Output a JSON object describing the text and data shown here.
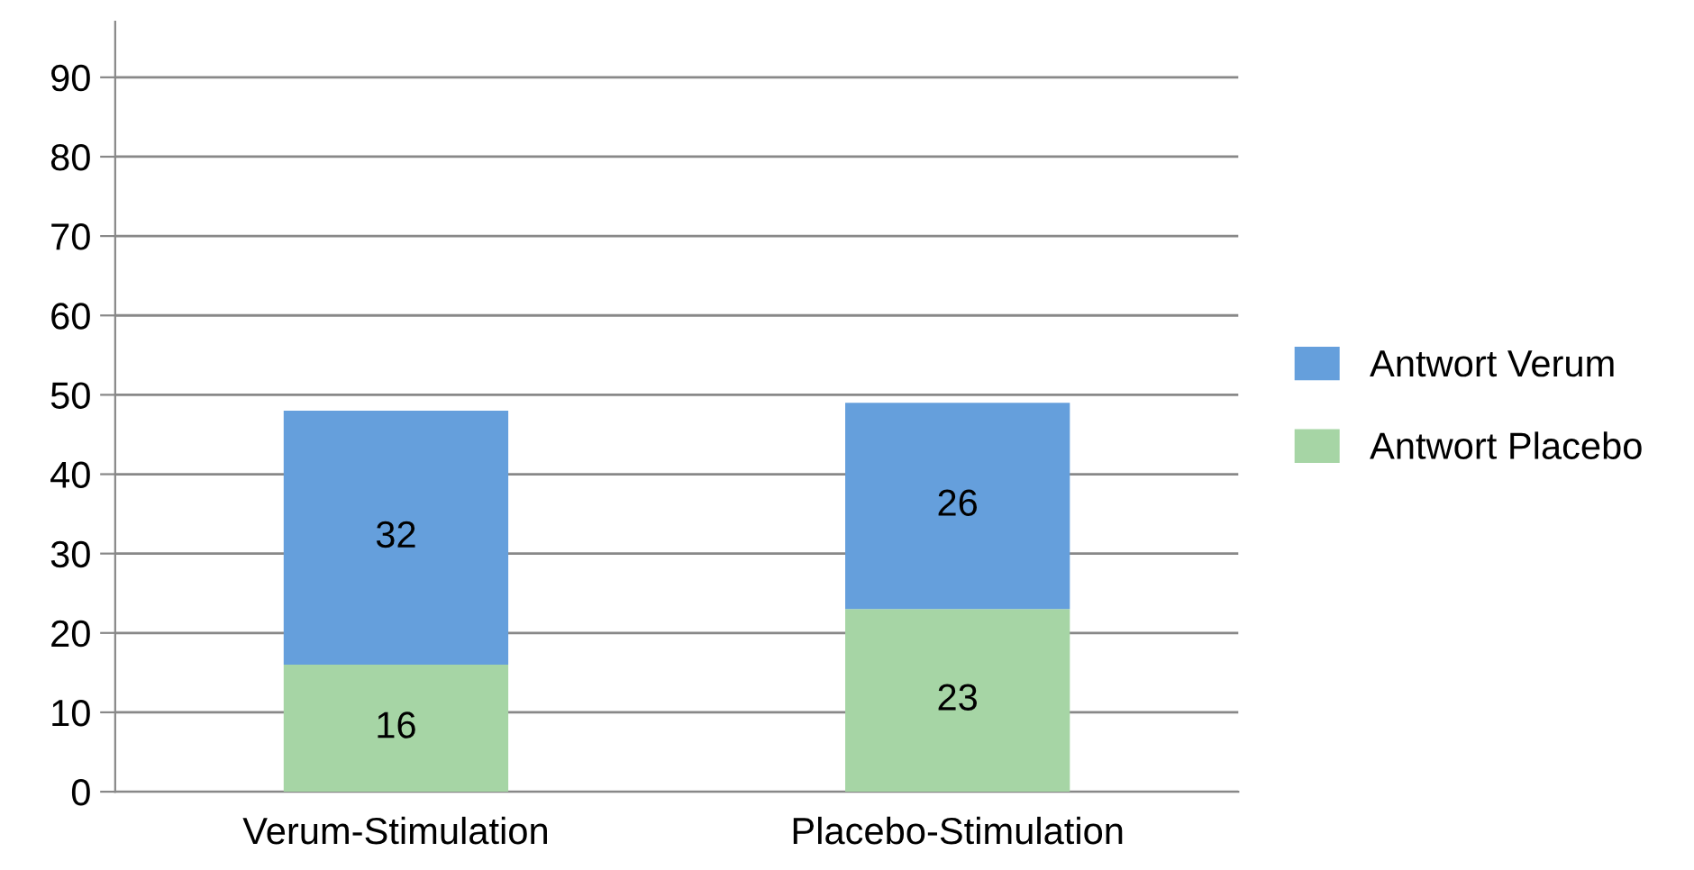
{
  "chart_data": {
    "type": "bar",
    "stacked": true,
    "categories": [
      "Verum-Stimulation",
      "Placebo-Stimulation"
    ],
    "series": [
      {
        "name": "Antwort Placebo",
        "color": "#a6d5a5",
        "values": [
          16,
          23
        ]
      },
      {
        "name": "Antwort Verum",
        "color": "#659fdc",
        "values": [
          32,
          26
        ]
      }
    ],
    "ylim": [
      0,
      97
    ],
    "yticks": [
      0,
      10,
      20,
      30,
      40,
      50,
      60,
      70,
      80,
      90
    ],
    "grid": "y",
    "legend": "right",
    "data_labels": true
  }
}
